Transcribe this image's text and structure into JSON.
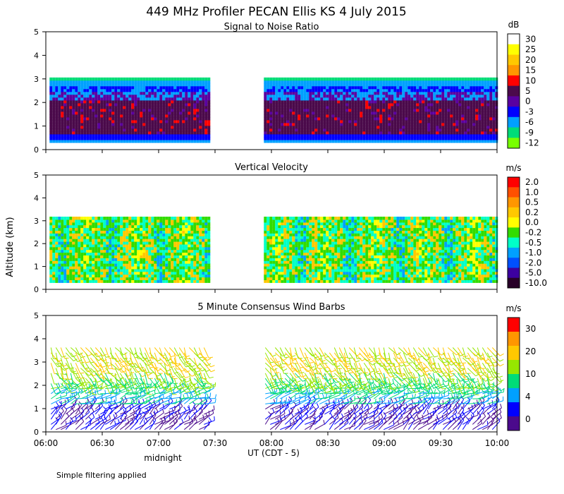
{
  "title": "449 MHz Profiler PECAN Ellis KS   4 July 2015",
  "ylabel": "Altitude (km)",
  "xlabel": "UT  (CDT - 5)",
  "midnight_label": "midnight",
  "footnote": "Simple filtering applied",
  "x_ticks": [
    "06:00",
    "06:30",
    "07:00",
    "07:30",
    "08:00",
    "08:30",
    "09:00",
    "09:30",
    "10:00"
  ],
  "y_ticks": [
    "0",
    "1",
    "2",
    "3",
    "4",
    "5"
  ],
  "chart_data": [
    {
      "type": "heatmap",
      "title": "Signal to Noise Ratio",
      "unit": "dB",
      "xlim": [
        "06:00",
        "10:00"
      ],
      "ylim": [
        0,
        5
      ],
      "data_segments": [
        [
          "06:02",
          "07:26"
        ],
        [
          "07:56",
          "10:00"
        ]
      ],
      "data_top_km": 3.0,
      "colorbar_labels": [
        "30",
        "25",
        "20",
        "15",
        "10",
        "5",
        "0",
        "-3",
        "-6",
        "-9",
        "-12"
      ],
      "colors": [
        "#ffffff",
        "#ffff00",
        "#ffc800",
        "#ff9600",
        "#ff0000",
        "#4b0a4b",
        "#5a00a0",
        "#0000ff",
        "#00a0ff",
        "#00dc78",
        "#78ff00"
      ]
    },
    {
      "type": "heatmap",
      "title": "Vertical Velocity",
      "unit": "m/s",
      "xlim": [
        "06:00",
        "10:00"
      ],
      "ylim": [
        0,
        5
      ],
      "data_segments": [
        [
          "06:02",
          "07:26"
        ],
        [
          "07:56",
          "10:00"
        ]
      ],
      "data_top_km": 3.1,
      "colorbar_labels": [
        "2.0",
        "1.0",
        "0.5",
        "0.2",
        "0.0",
        "-0.2",
        "-0.5",
        "-1.0",
        "-2.0",
        "-5.0",
        "-10.0"
      ],
      "colors": [
        "#ff0000",
        "#ff5000",
        "#ff9600",
        "#ffc800",
        "#ffff00",
        "#32dc00",
        "#00ffc8",
        "#00a0ff",
        "#0050ff",
        "#3c00a0",
        "#280028"
      ]
    },
    {
      "type": "scatter",
      "title": "5 Minute Consensus Wind Barbs",
      "unit": "m/s",
      "xlim": [
        "06:00",
        "10:00"
      ],
      "ylim": [
        0,
        5
      ],
      "data_segments": [
        [
          "06:02",
          "07:26"
        ],
        [
          "07:56",
          "10:00"
        ]
      ],
      "colorbar_labels": [
        "30",
        "20",
        "10",
        "4",
        "0"
      ],
      "colors": [
        "#ff0000",
        "#ff9600",
        "#ffc800",
        "#96e600",
        "#00dc78",
        "#00a0ff",
        "#0000ff",
        "#4b0a8c"
      ]
    }
  ]
}
